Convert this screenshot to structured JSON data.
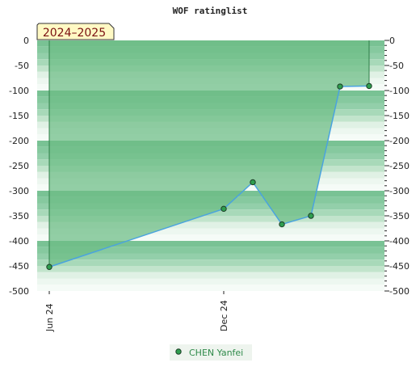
{
  "chart_data": {
    "type": "area",
    "title": "WOF ratinglist",
    "season_label": "2024–2025",
    "x_tick_labels": [
      "Jun 24",
      "Dec 24"
    ],
    "ylim": [
      -500,
      0
    ],
    "y_ticks": [
      0,
      -50,
      -100,
      -150,
      -200,
      -250,
      -300,
      -350,
      -400,
      -450,
      -500
    ],
    "series": [
      {
        "name": "CHEN Yanfei",
        "points": [
          {
            "x": "2024-06",
            "y": -452
          },
          {
            "x": "2024-12",
            "y": -336
          },
          {
            "x": "2025-01",
            "y": -283
          },
          {
            "x": "2025-02",
            "y": -367
          },
          {
            "x": "2025-03",
            "y": -350
          },
          {
            "x": "2025-04",
            "y": -92
          },
          {
            "x": "2025-05",
            "y": -91
          }
        ]
      }
    ],
    "grid": true,
    "legend_position": "bottom-center"
  },
  "colors": {
    "fill": "#6cbd85",
    "line": "#4aa3df",
    "marker": "#2f9e4f",
    "legend_text": "#2f8a4a"
  }
}
